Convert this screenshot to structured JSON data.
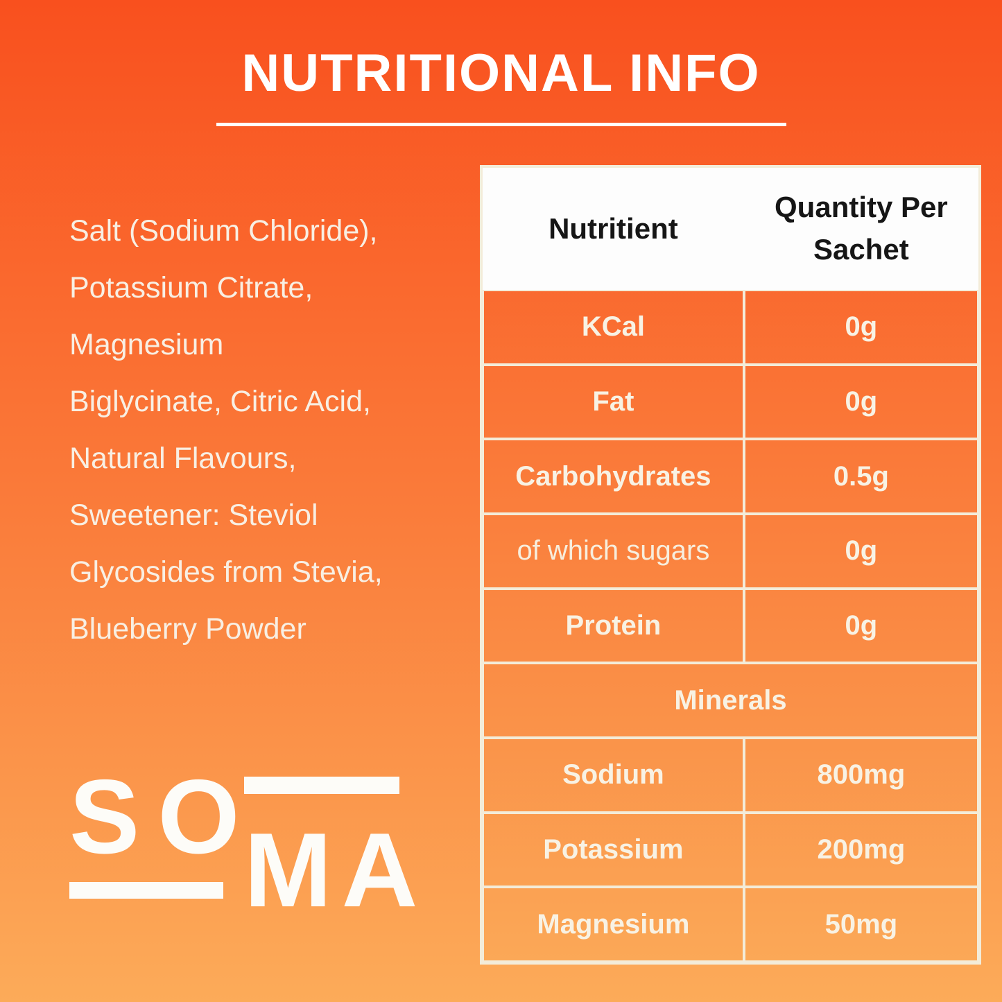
{
  "title": "NUTRITIONAL INFO",
  "ingredients_text": "Salt (Sodium Chloride),\nPotassium Citrate,\nMagnesium\nBiglycinate, Citric Acid,\nNatural Flavours,\nSweetener: Steviol\nGlycosides from Stevia,\nBlueberry Powder",
  "logo": {
    "brand": "SOMA",
    "top_letters": "SO",
    "bottom_letters": "MA"
  },
  "table": {
    "col_headers": [
      "Nutritient",
      "Quantity Per Sachet"
    ],
    "rows": [
      {
        "label": "KCal",
        "value": "0g",
        "style": "bold"
      },
      {
        "label": "Fat",
        "value": "0g",
        "style": "bold"
      },
      {
        "label": "Carbohydrates",
        "value": "0.5g",
        "style": "bold"
      },
      {
        "label": "of which sugars",
        "value": "0g",
        "style": "light-label"
      },
      {
        "label": "Protein",
        "value": "0g",
        "style": "bold"
      },
      {
        "label": "Minerals",
        "value": null,
        "style": "section"
      },
      {
        "label": "Sodium",
        "value": "800mg",
        "style": "bold"
      },
      {
        "label": "Potassium",
        "value": "200mg",
        "style": "bold"
      },
      {
        "label": "Magnesium",
        "value": "50mg",
        "style": "bold"
      }
    ]
  },
  "colors": {
    "bg_top": "#f9501e",
    "bg_bottom": "#fcab59",
    "table_border": "#f3ecd9",
    "table_header_bg": "#fdfdfd",
    "table_header_text": "#161616",
    "cell_text": "#f8f2e4",
    "title_text": "#ffffff",
    "logo_text": "#fdfcf8"
  }
}
